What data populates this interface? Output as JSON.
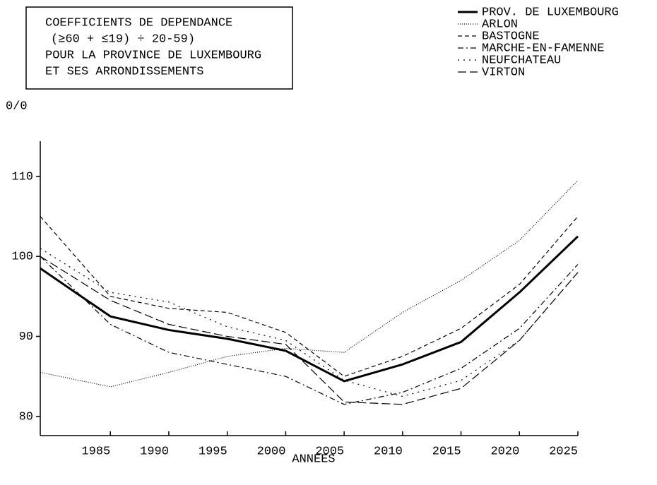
{
  "chart_data": {
    "type": "line",
    "title": [
      "COEFFICIENTS DE DEPENDANCE",
      "(≥60 + ≤19) ÷ 20-59)",
      "POUR LA PROVINCE DE LUXEMBOURG",
      "ET SES ARRONDISSEMENTS"
    ],
    "y_label": "0/0",
    "x_label": "ANNEES",
    "x": [
      1979,
      1985,
      1990,
      1995,
      2000,
      2005,
      2010,
      2015,
      2020,
      2025
    ],
    "series": [
      {
        "name": "PROV. DE LUXEMBOURG",
        "color": "#000000",
        "style": "thick",
        "values": [
          98.5,
          92.5,
          90.8,
          89.7,
          88.2,
          84.4,
          86.5,
          89.3,
          95.5,
          102.5
        ]
      },
      {
        "name": "ARLON",
        "color": "#000000",
        "style": "dotted",
        "values": [
          85.5,
          83.7,
          85.5,
          87.5,
          88.5,
          88,
          93,
          97,
          102,
          109.5
        ]
      },
      {
        "name": "BASTOGNE",
        "color": "#000000",
        "style": "dashed",
        "values": [
          105,
          95,
          93.5,
          93,
          90.5,
          85,
          87.5,
          91,
          96.5,
          105
        ]
      },
      {
        "name": "MARCHE-EN-FAMENNE",
        "color": "#000000",
        "style": "dashdot",
        "values": [
          100,
          91.5,
          88,
          86.5,
          85,
          81.5,
          83,
          86,
          91,
          99
        ]
      },
      {
        "name": "NEUFCHATEAU",
        "color": "#000000",
        "style": "sparsedot",
        "values": [
          101,
          95.5,
          94.3,
          91.2,
          89.5,
          84.5,
          82.5,
          84.5,
          89.5,
          98
        ]
      },
      {
        "name": "VIRTON",
        "color": "#000000",
        "style": "longdash",
        "values": [
          100,
          94.5,
          91.5,
          90,
          89,
          81.8,
          81.5,
          83.5,
          89.5,
          98
        ]
      }
    ],
    "xlim": [
      1979,
      2025
    ],
    "ylim": [
      77.6,
      114.4
    ],
    "xticks": [
      1985,
      1990,
      1995,
      2000,
      2005,
      2010,
      2015,
      2020,
      2025
    ],
    "yticks": [
      80,
      90,
      100,
      110
    ]
  }
}
